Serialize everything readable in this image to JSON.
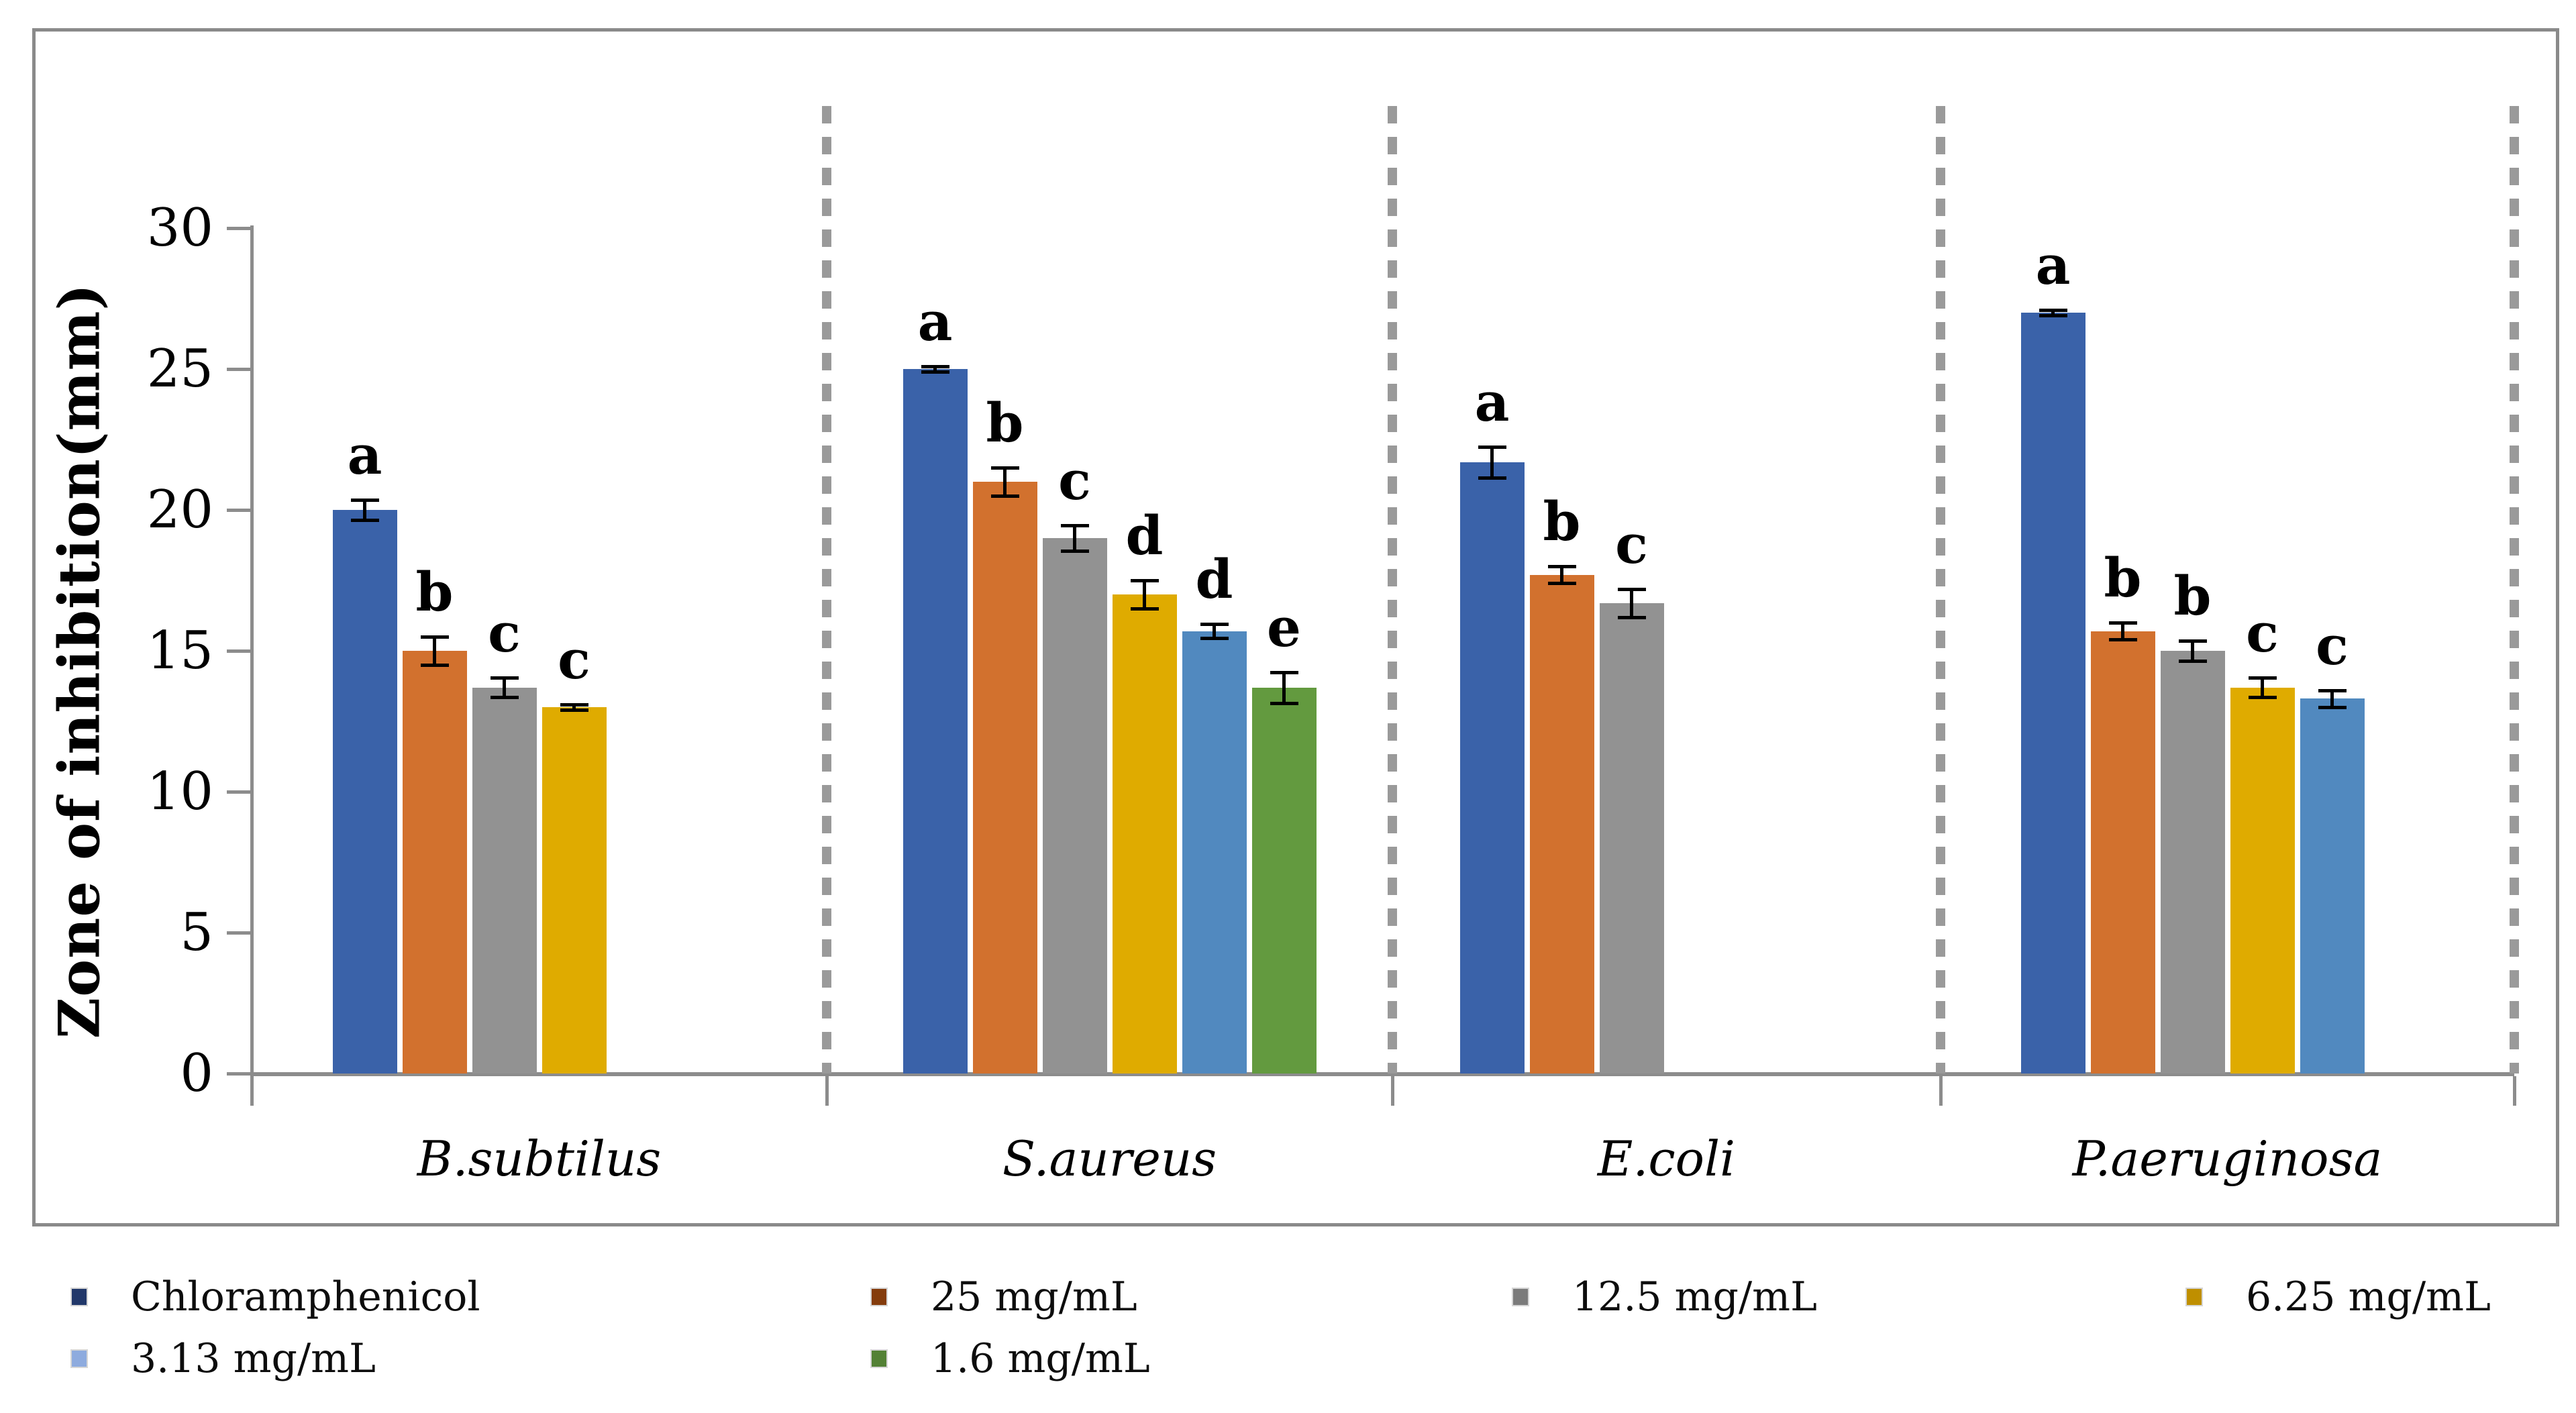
{
  "figure_title": "",
  "colors": {
    "axis": "#8c8c8c",
    "frame": "#8a8a8a",
    "separator": "#9a9a9a",
    "error_bar": "#000000",
    "text": "#000000"
  },
  "chart_data": {
    "type": "bar",
    "title": "",
    "xlabel": "",
    "ylabel": "Zone of inhibition(mm)",
    "ylim": [
      0,
      30
    ],
    "yticks": [
      0,
      5,
      10,
      15,
      20,
      25,
      30
    ],
    "grid": false,
    "legend_position": "bottom-two-rows",
    "separators": "dashed-vertical-lines-between-categories",
    "error_bars": true,
    "categories": [
      "B.subtilus",
      "S.aureus",
      "E.coli",
      "P.aeruginosa"
    ],
    "series": [
      {
        "name": "Chloramphenicol",
        "color": "#3A62A9",
        "legend_color": "#22386A",
        "values": [
          20,
          25,
          21.7,
          27
        ],
        "errors": [
          0.35,
          0.1,
          0.55,
          0.1
        ],
        "letters": [
          "a",
          "a",
          "a",
          "a"
        ]
      },
      {
        "name": "25 mg/mL",
        "color": "#D2712E",
        "legend_color": "#843C0C",
        "values": [
          15,
          21,
          17.7,
          15.7
        ],
        "errors": [
          0.5,
          0.5,
          0.3,
          0.3
        ],
        "letters": [
          "b",
          "b",
          "b",
          "b"
        ]
      },
      {
        "name": "12.5 mg/mL",
        "color": "#929292",
        "legend_color": "#7B7B7B",
        "values": [
          13.7,
          19,
          16.7,
          15
        ],
        "errors": [
          0.35,
          0.45,
          0.5,
          0.35
        ],
        "letters": [
          "c",
          "c",
          "c",
          "b"
        ]
      },
      {
        "name": "6.25 mg/mL",
        "color": "#DFAB00",
        "legend_color": "#BF8F00",
        "values": [
          13,
          17,
          null,
          13.7
        ],
        "errors": [
          0.1,
          0.5,
          null,
          0.35
        ],
        "letters": [
          "c",
          "d",
          null,
          "c"
        ]
      },
      {
        "name": "3.13 mg/mL",
        "color": "#5189BF",
        "legend_color": "#8EABDE",
        "values": [
          null,
          15.7,
          null,
          13.3
        ],
        "errors": [
          null,
          0.25,
          null,
          0.3
        ],
        "letters": [
          null,
          "d",
          null,
          "c"
        ]
      },
      {
        "name": "1.6 mg/mL",
        "color": "#639A3F",
        "legend_color": "#538135",
        "values": [
          null,
          13.7,
          null,
          null
        ],
        "errors": [
          null,
          0.55,
          null,
          null
        ],
        "letters": [
          null,
          "e",
          null,
          null
        ]
      }
    ]
  }
}
